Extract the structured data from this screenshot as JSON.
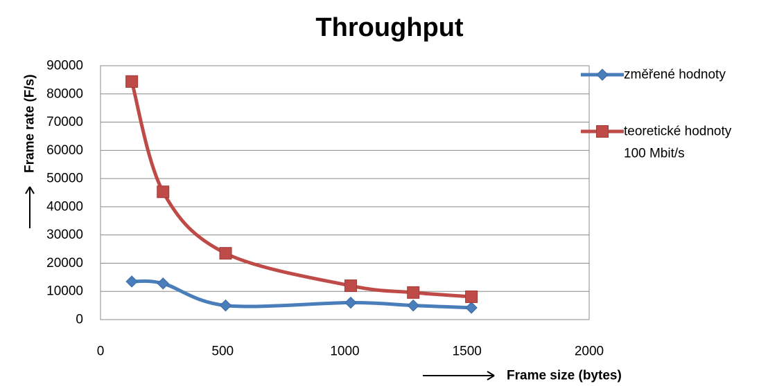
{
  "chart_data": {
    "type": "scatter",
    "title": "Throughput",
    "xlabel": "Frame size (bytes)",
    "ylabel": "Frame rate (F/s)",
    "xlim": [
      0,
      2000
    ],
    "ylim": [
      0,
      90000
    ],
    "xticks": [
      0,
      500,
      1000,
      1500,
      2000
    ],
    "yticks": [
      0,
      10000,
      20000,
      30000,
      40000,
      50000,
      60000,
      70000,
      80000,
      90000
    ],
    "grid": "horizontal",
    "smoothed_lines": true,
    "legend_position": "right",
    "series": [
      {
        "name": "změřené hodnoty",
        "color": "#4a7ebb",
        "marker": "diamond",
        "x": [
          128,
          256,
          512,
          1024,
          1280,
          1518
        ],
        "y": [
          13500,
          12800,
          5000,
          6000,
          5000,
          4200
        ]
      },
      {
        "name": "teoretické hodnoty 100 Mbit/s",
        "name_lines": [
          "teoretické hodnoty",
          "100 Mbit/s"
        ],
        "color": "#be4b48",
        "marker": "square",
        "x": [
          128,
          256,
          512,
          1024,
          1280,
          1518
        ],
        "y": [
          84400,
          45300,
          23500,
          12000,
          9600,
          8100
        ]
      }
    ]
  }
}
